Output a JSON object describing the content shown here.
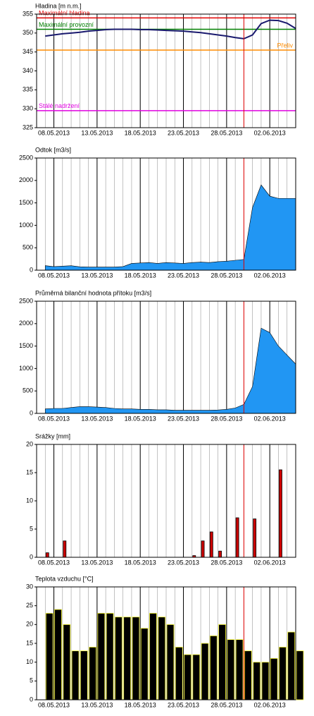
{
  "chart_data": [
    {
      "type": "line",
      "title": "Hladina [m n.m.]",
      "x": [
        "07.05.2013",
        "08.05.2013",
        "09.05.2013",
        "10.05.2013",
        "11.05.2013",
        "12.05.2013",
        "13.05.2013",
        "14.05.2013",
        "15.05.2013",
        "16.05.2013",
        "17.05.2013",
        "18.05.2013",
        "19.05.2013",
        "20.05.2013",
        "21.05.2013",
        "22.05.2013",
        "23.05.2013",
        "24.05.2013",
        "25.05.2013",
        "26.05.2013",
        "27.05.2013",
        "28.05.2013",
        "29.05.2013",
        "30.05.2013",
        "31.05.2013",
        "01.06.2013",
        "02.06.2013",
        "03.06.2013",
        "04.06.2013",
        "05.06.2013"
      ],
      "values": [
        349.2,
        349.5,
        349.8,
        350.0,
        350.2,
        350.5,
        350.7,
        350.9,
        351.0,
        351.0,
        351.0,
        350.9,
        350.9,
        350.8,
        350.7,
        350.6,
        350.5,
        350.3,
        350.1,
        349.8,
        349.5,
        349.2,
        348.8,
        348.5,
        349.5,
        352.5,
        353.4,
        353.3,
        352.6,
        351.2
      ],
      "color": "#1a1a6e",
      "reference_lines": [
        {
          "label": "Maximální hladina",
          "value": 354,
          "color": "#e00000"
        },
        {
          "label": "Maximální provozní",
          "value": 351,
          "color": "#008000"
        },
        {
          "label": "Přeliv",
          "value": 345.5,
          "color": "#ff8c00"
        },
        {
          "label": "Stálé nadržení",
          "value": 329.5,
          "color": "#e000e0"
        }
      ],
      "ylim": [
        325,
        355
      ],
      "yticks": [
        325,
        330,
        335,
        340,
        345,
        350,
        355
      ],
      "xlim": [
        "06.05.2013",
        "05.06.2013"
      ],
      "xticks": [
        "08.05.2013",
        "13.05.2013",
        "18.05.2013",
        "23.05.2013",
        "28.05.2013",
        "02.06.2013"
      ],
      "xminor_step_days": 1,
      "marker_line": {
        "x": "30.05.2013",
        "color": "#e00000"
      }
    },
    {
      "type": "area",
      "title": "Odtok [m3/s]",
      "x": [
        "07.05.2013",
        "08.05.2013",
        "09.05.2013",
        "10.05.2013",
        "11.05.2013",
        "12.05.2013",
        "13.05.2013",
        "14.05.2013",
        "15.05.2013",
        "16.05.2013",
        "17.05.2013",
        "18.05.2013",
        "19.05.2013",
        "20.05.2013",
        "21.05.2013",
        "22.05.2013",
        "23.05.2013",
        "24.05.2013",
        "25.05.2013",
        "26.05.2013",
        "27.05.2013",
        "28.05.2013",
        "29.05.2013",
        "30.05.2013",
        "31.05.2013",
        "01.06.2013",
        "02.06.2013",
        "03.06.2013",
        "04.06.2013",
        "05.06.2013"
      ],
      "values": [
        100,
        80,
        90,
        100,
        75,
        70,
        70,
        70,
        70,
        80,
        150,
        160,
        170,
        150,
        170,
        160,
        150,
        170,
        180,
        170,
        190,
        200,
        220,
        240,
        1400,
        1900,
        1650,
        1600,
        1600,
        1600
      ],
      "color": "#2196f3",
      "ylim": [
        0,
        2500
      ],
      "yticks": [
        0,
        500,
        1000,
        1500,
        2000,
        2500
      ],
      "xlim": [
        "06.05.2013",
        "05.06.2013"
      ],
      "xticks": [
        "08.05.2013",
        "13.05.2013",
        "18.05.2013",
        "23.05.2013",
        "28.05.2013",
        "02.06.2013"
      ],
      "xminor_step_days": 1,
      "marker_line": {
        "x": "30.05.2013",
        "color": "#e00000"
      }
    },
    {
      "type": "area",
      "title": "Průměrná bilanční hodnota přítoku [m3/s]",
      "x": [
        "07.05.2013",
        "08.05.2013",
        "09.05.2013",
        "10.05.2013",
        "11.05.2013",
        "12.05.2013",
        "13.05.2013",
        "14.05.2013",
        "15.05.2013",
        "16.05.2013",
        "17.05.2013",
        "18.05.2013",
        "19.05.2013",
        "20.05.2013",
        "21.05.2013",
        "22.05.2013",
        "23.05.2013",
        "24.05.2013",
        "25.05.2013",
        "26.05.2013",
        "27.05.2013",
        "28.05.2013",
        "29.05.2013",
        "30.05.2013",
        "31.05.2013",
        "01.06.2013",
        "02.06.2013",
        "03.06.2013",
        "04.06.2013",
        "05.06.2013"
      ],
      "values": [
        100,
        110,
        110,
        130,
        150,
        150,
        140,
        130,
        110,
        100,
        100,
        90,
        90,
        80,
        80,
        70,
        70,
        70,
        70,
        70,
        75,
        90,
        120,
        200,
        600,
        1900,
        1800,
        1500,
        1300,
        1100
      ],
      "color": "#2196f3",
      "ylim": [
        0,
        2500
      ],
      "yticks": [
        0,
        500,
        1000,
        1500,
        2000,
        2500
      ],
      "xlim": [
        "06.05.2013",
        "05.06.2013"
      ],
      "xticks": [
        "08.05.2013",
        "13.05.2013",
        "18.05.2013",
        "23.05.2013",
        "28.05.2013",
        "02.06.2013"
      ],
      "xminor_step_days": 1,
      "marker_line": {
        "x": "30.05.2013",
        "color": "#e00000"
      }
    },
    {
      "type": "bar",
      "title": "Srážky [mm]",
      "x": [
        "07.05.2013",
        "08.05.2013",
        "09.05.2013",
        "10.05.2013",
        "11.05.2013",
        "12.05.2013",
        "13.05.2013",
        "14.05.2013",
        "15.05.2013",
        "16.05.2013",
        "17.05.2013",
        "18.05.2013",
        "19.05.2013",
        "20.05.2013",
        "21.05.2013",
        "22.05.2013",
        "23.05.2013",
        "24.05.2013",
        "25.05.2013",
        "26.05.2013",
        "27.05.2013",
        "28.05.2013",
        "29.05.2013",
        "30.05.2013",
        "31.05.2013",
        "01.06.2013",
        "02.06.2013",
        "03.06.2013",
        "04.06.2013",
        "05.06.2013"
      ],
      "values": [
        0.8,
        0,
        2.9,
        0,
        0,
        0,
        0,
        0,
        0,
        0,
        0,
        0,
        0,
        0,
        0,
        0,
        0,
        0.3,
        2.9,
        4.5,
        1.1,
        0,
        7.0,
        0,
        6.8,
        0,
        0,
        15.5,
        0,
        0
      ],
      "color": "#cc0000",
      "edge_color": "#000000",
      "ylim": [
        0,
        20
      ],
      "yticks": [
        0,
        5,
        10,
        15,
        20
      ],
      "xlim": [
        "06.05.2013",
        "05.06.2013"
      ],
      "xticks": [
        "08.05.2013",
        "13.05.2013",
        "18.05.2013",
        "23.05.2013",
        "28.05.2013",
        "02.06.2013"
      ],
      "xminor_step_days": 1,
      "marker_line": {
        "x": "30.05.2013",
        "color": "#e00000"
      }
    },
    {
      "type": "bar",
      "title": "Teplota vzduchu [°C]",
      "x": [
        "07.05.2013",
        "08.05.2013",
        "09.05.2013",
        "10.05.2013",
        "11.05.2013",
        "12.05.2013",
        "13.05.2013",
        "14.05.2013",
        "15.05.2013",
        "16.05.2013",
        "17.05.2013",
        "18.05.2013",
        "19.05.2013",
        "20.05.2013",
        "21.05.2013",
        "22.05.2013",
        "23.05.2013",
        "24.05.2013",
        "25.05.2013",
        "26.05.2013",
        "27.05.2013",
        "28.05.2013",
        "29.05.2013",
        "30.05.2013",
        "31.05.2013",
        "01.06.2013",
        "02.06.2013",
        "03.06.2013",
        "04.06.2013",
        "05.06.2013"
      ],
      "values": [
        23,
        24,
        20,
        13,
        13,
        14,
        23,
        23,
        22,
        22,
        22,
        19,
        23,
        22,
        20,
        14,
        12,
        12,
        15,
        17,
        20,
        16,
        16,
        13,
        10,
        10,
        11,
        14,
        18,
        13
      ],
      "color": "#000000",
      "edge_color": "#ffff33",
      "ylim": [
        0,
        30
      ],
      "yticks": [
        0,
        5,
        10,
        15,
        20,
        25,
        30
      ],
      "xlim": [
        "06.05.2013",
        "05.06.2013"
      ],
      "xticks": [
        "08.05.2013",
        "13.05.2013",
        "18.05.2013",
        "23.05.2013",
        "28.05.2013",
        "02.06.2013"
      ],
      "xminor_step_days": 1,
      "marker_line": {
        "x": "30.05.2013",
        "color": "#e00000"
      }
    }
  ]
}
